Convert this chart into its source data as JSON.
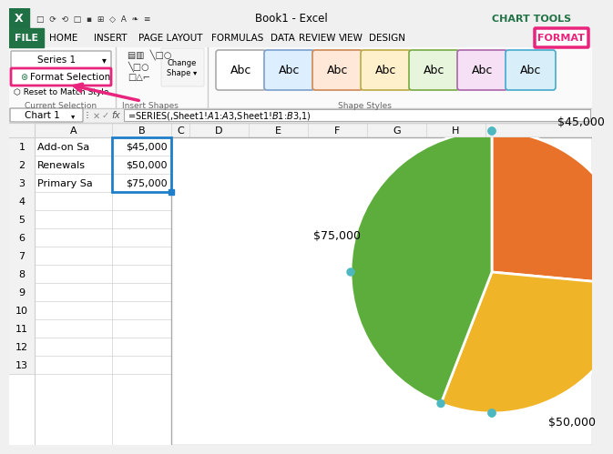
{
  "pie_values": [
    45000,
    50000,
    75000
  ],
  "pie_colors": [
    "#E8722A",
    "#F0B429",
    "#5DAD3C"
  ],
  "cell_data": [
    [
      "Add-on Sa",
      "$45,000"
    ],
    [
      "Renewals",
      "$50,000"
    ],
    [
      "Primary Sa",
      "$75,000"
    ]
  ],
  "col_headers": [
    "A",
    "B",
    "C",
    "D",
    "E",
    "F",
    "G",
    "H"
  ],
  "formula_bar": "=SERIES(,Sheet1!$A$1:$A$3,Sheet1!$B$1:$B$3,1)",
  "chart_name": "Chart 1",
  "title_bar": "Book1 - Excel",
  "chart_tools": "CHART TOOLS",
  "format_tab": "FORMAT",
  "series_label": "Series 1",
  "pink": "#E8247C",
  "green_excel": "#217346",
  "grid_color": "#D0D0D0",
  "header_bg": "#F2F2F2",
  "ribbon_bg": "#F8F8F8",
  "abc_colors": [
    "#FFFFFF",
    "#DDEEFF",
    "#FFE8D8",
    "#FFF0CC",
    "#E8F5DD",
    "#F5E0F5",
    "#D8EEF8"
  ],
  "abc_borders": [
    "#AAAAAA",
    "#7B9FCC",
    "#CC8855",
    "#BBAA44",
    "#77AA44",
    "#AA66AA",
    "#44AACC"
  ],
  "label_75k": "$75,000",
  "label_50k": "$50,000",
  "label_45k": "$45,000"
}
